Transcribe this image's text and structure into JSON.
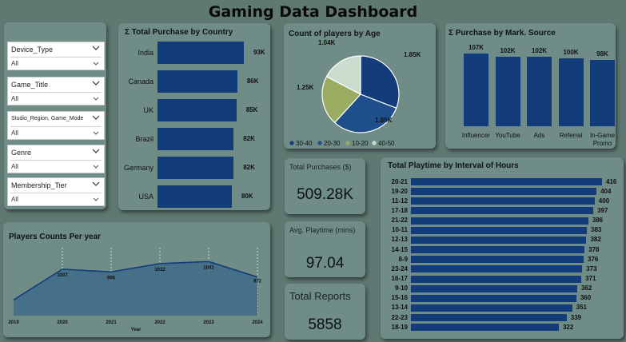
{
  "dashboard": {
    "title": "Gaming Data Dashboard"
  },
  "slicers": [
    {
      "label": "Device_Type",
      "value": "All"
    },
    {
      "label": "Game_Title",
      "value": "All"
    },
    {
      "label": "Studio_Region, Game_Mode",
      "value": "All"
    },
    {
      "label": "Genre",
      "value": "All"
    },
    {
      "label": "Membership_Tier",
      "value": "All"
    }
  ],
  "purchase_by_country": {
    "title": "Σ Total Purchase by Country",
    "bars": [
      {
        "label": "India",
        "value": 93,
        "display": "93K"
      },
      {
        "label": "Canada",
        "value": 86,
        "display": "86K"
      },
      {
        "label": "UK",
        "value": 85,
        "display": "85K"
      },
      {
        "label": "Brazil",
        "value": 82,
        "display": "82K"
      },
      {
        "label": "Germany",
        "value": 82,
        "display": "82K"
      },
      {
        "label": "USA",
        "value": 80,
        "display": "80K"
      }
    ]
  },
  "players_by_age": {
    "title": "Count of players by Age",
    "slices": [
      {
        "label": "30-40",
        "value": 1.85,
        "display": "1.85K",
        "color": "#123c7a"
      },
      {
        "label": "20-30",
        "value": 1.85,
        "display": "1.85K",
        "color": "#1f4f8a"
      },
      {
        "label": "10-20",
        "value": 1.25,
        "display": "1.25K",
        "color": "#9aac62"
      },
      {
        "label": "40-50",
        "value": 1.04,
        "display": "1.04K",
        "color": "#c9dccd"
      }
    ]
  },
  "purchase_by_source": {
    "title": "Σ Purchase by Mark. Source",
    "bars": [
      {
        "label": "Influencer",
        "value": 107,
        "display": "107K"
      },
      {
        "label": "YouTube",
        "value": 102,
        "display": "102K"
      },
      {
        "label": "Ads",
        "value": 102,
        "display": "102K"
      },
      {
        "label": "Referral",
        "value": 100,
        "display": "100K"
      },
      {
        "label": "In-Game Promo",
        "value": 98,
        "display": "98K"
      }
    ]
  },
  "kpis": {
    "total_purchases": {
      "label": "Total Purchases ($)",
      "value": "509.28K"
    },
    "avg_playtime": {
      "label": "Avg. Playtime (mins)",
      "value": "97.04"
    },
    "total_reports": {
      "label": "Total Reports",
      "value": "5858"
    }
  },
  "players_per_year": {
    "title": "Players Counts Per year",
    "xlabel": "Year",
    "points": [
      {
        "x": "2019",
        "y": 870,
        "display": ""
      },
      {
        "x": "2020",
        "y": 1007,
        "display": "1007"
      },
      {
        "x": "2021",
        "y": 995,
        "display": "995"
      },
      {
        "x": "2022",
        "y": 1032,
        "display": "1032"
      },
      {
        "x": "2023",
        "y": 1041,
        "display": "1041"
      },
      {
        "x": "2024",
        "y": 972,
        "display": "972"
      }
    ]
  },
  "playtime_by_interval": {
    "title": "Total Playtime by Interval of Hours",
    "bars": [
      {
        "label": "20-21",
        "value": 416
      },
      {
        "label": "19-20",
        "value": 404
      },
      {
        "label": "11-12",
        "value": 400
      },
      {
        "label": "17-18",
        "value": 397
      },
      {
        "label": "21-22",
        "value": 386
      },
      {
        "label": "10-11",
        "value": 383
      },
      {
        "label": "12-13",
        "value": 382
      },
      {
        "label": "14-15",
        "value": 378
      },
      {
        "label": "8-9",
        "value": 376
      },
      {
        "label": "23-24",
        "value": 373
      },
      {
        "label": "16-17",
        "value": 371
      },
      {
        "label": "9-10",
        "value": 362
      },
      {
        "label": "15-16",
        "value": 360
      },
      {
        "label": "13-14",
        "value": 351
      },
      {
        "label": "22-23",
        "value": 339
      },
      {
        "label": "18-19",
        "value": 322
      }
    ]
  },
  "chart_data": [
    {
      "type": "bar",
      "orientation": "horizontal",
      "title": "Σ Total Purchase by Country",
      "categories": [
        "India",
        "Canada",
        "UK",
        "Brazil",
        "Germany",
        "USA"
      ],
      "values": [
        93,
        86,
        85,
        82,
        82,
        80
      ],
      "unit": "K"
    },
    {
      "type": "pie",
      "title": "Count of players by Age",
      "categories": [
        "30-40",
        "20-30",
        "10-20",
        "40-50"
      ],
      "values": [
        1.85,
        1.85,
        1.25,
        1.04
      ],
      "unit": "K",
      "legend": "bottom"
    },
    {
      "type": "bar",
      "title": "Σ Purchase by Mark. Source",
      "categories": [
        "Influencer",
        "YouTube",
        "Ads",
        "Referral",
        "In-Game Promo"
      ],
      "values": [
        107,
        102,
        102,
        100,
        98
      ],
      "unit": "K"
    },
    {
      "type": "area",
      "title": "Players Counts Per year",
      "xlabel": "Year",
      "x": [
        "2019",
        "2020",
        "2021",
        "2022",
        "2023",
        "2024"
      ],
      "values": [
        870,
        1007,
        995,
        1032,
        1041,
        972
      ]
    },
    {
      "type": "bar",
      "orientation": "horizontal",
      "title": "Total Playtime by Interval of Hours",
      "categories": [
        "20-21",
        "19-20",
        "11-12",
        "17-18",
        "21-22",
        "10-11",
        "12-13",
        "14-15",
        "8-9",
        "23-24",
        "16-17",
        "9-10",
        "15-16",
        "13-14",
        "22-23",
        "18-19"
      ],
      "values": [
        416,
        404,
        400,
        397,
        386,
        383,
        382,
        378,
        376,
        373,
        371,
        362,
        360,
        351,
        339,
        322
      ]
    }
  ]
}
